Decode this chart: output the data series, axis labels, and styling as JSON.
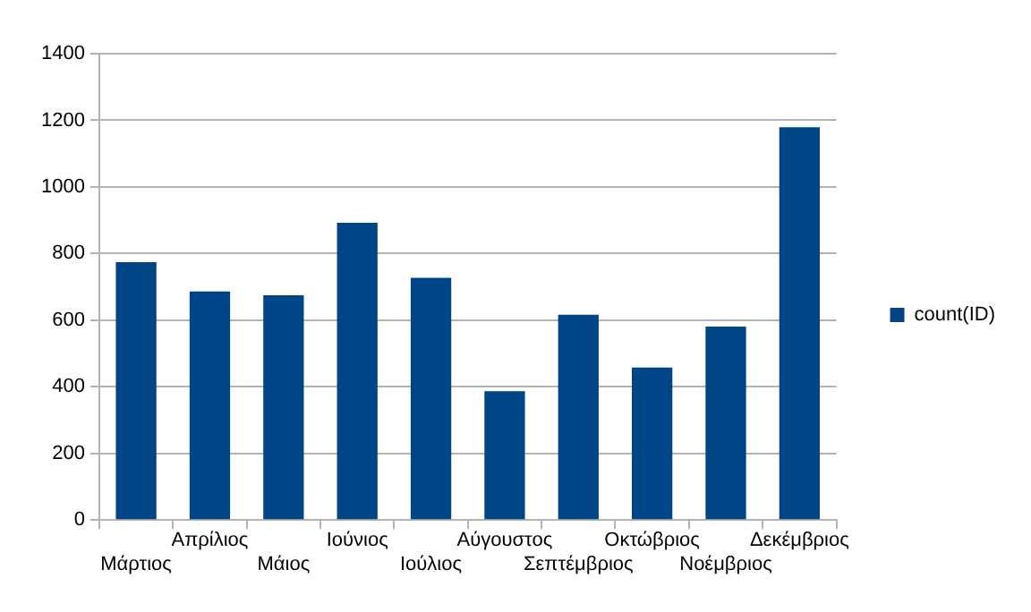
{
  "chart_data": {
    "type": "bar",
    "categories": [
      "Μάρτιος",
      "Απρίλιος",
      "Μάιος",
      "Ιούνιος",
      "Ιούλιος",
      "Αύγουστος",
      "Σεπτέμβριος",
      "Οκτώβριος",
      "Νοέμβριος",
      "Δεκέμβριος"
    ],
    "series": [
      {
        "name": "count(ID)",
        "color": "#004586",
        "values": [
          774,
          686,
          675,
          892,
          727,
          387,
          616,
          458,
          581,
          1179
        ]
      }
    ],
    "ylim": [
      0,
      1400
    ],
    "yticks": [
      0,
      200,
      400,
      600,
      800,
      1000,
      1200,
      1400
    ],
    "grid": "y",
    "legend": "right"
  }
}
